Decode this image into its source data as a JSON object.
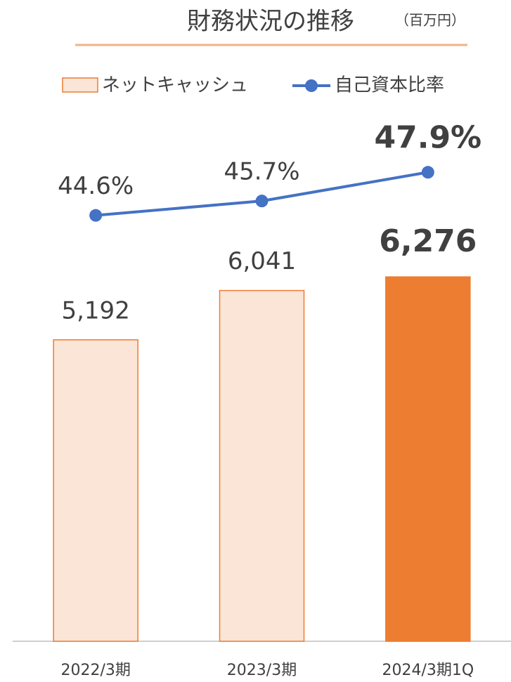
{
  "chart_data": {
    "type": "bar-line",
    "title": "財務状況の推移",
    "subtitle": "（百万円）",
    "categories": [
      "2022/3期",
      "2023/3期",
      "2024/3期1Q"
    ],
    "series": [
      {
        "name": "ネットキャッシュ",
        "type": "bar",
        "color": "#ed7d31",
        "fill": "#fbe5d6",
        "colors": [
          "#fbe5d6",
          "#fbe5d6",
          "#ed7d31"
        ],
        "values": [
          5192,
          6041,
          6276
        ],
        "value_labels": [
          "5,192",
          "6,041",
          "6,276"
        ],
        "bold_labels": [
          false,
          false,
          true
        ]
      },
      {
        "name": "自己資本比率",
        "type": "line",
        "axis": "y2",
        "color": "#4472c4",
        "values": [
          44.6,
          45.7,
          47.9
        ],
        "value_labels": [
          "44.6%",
          "45.7%",
          "47.9%"
        ],
        "bold_labels": [
          false,
          false,
          true
        ]
      }
    ],
    "ylim": [
      0,
      9000
    ],
    "y2lim": [
      12,
      52
    ]
  }
}
